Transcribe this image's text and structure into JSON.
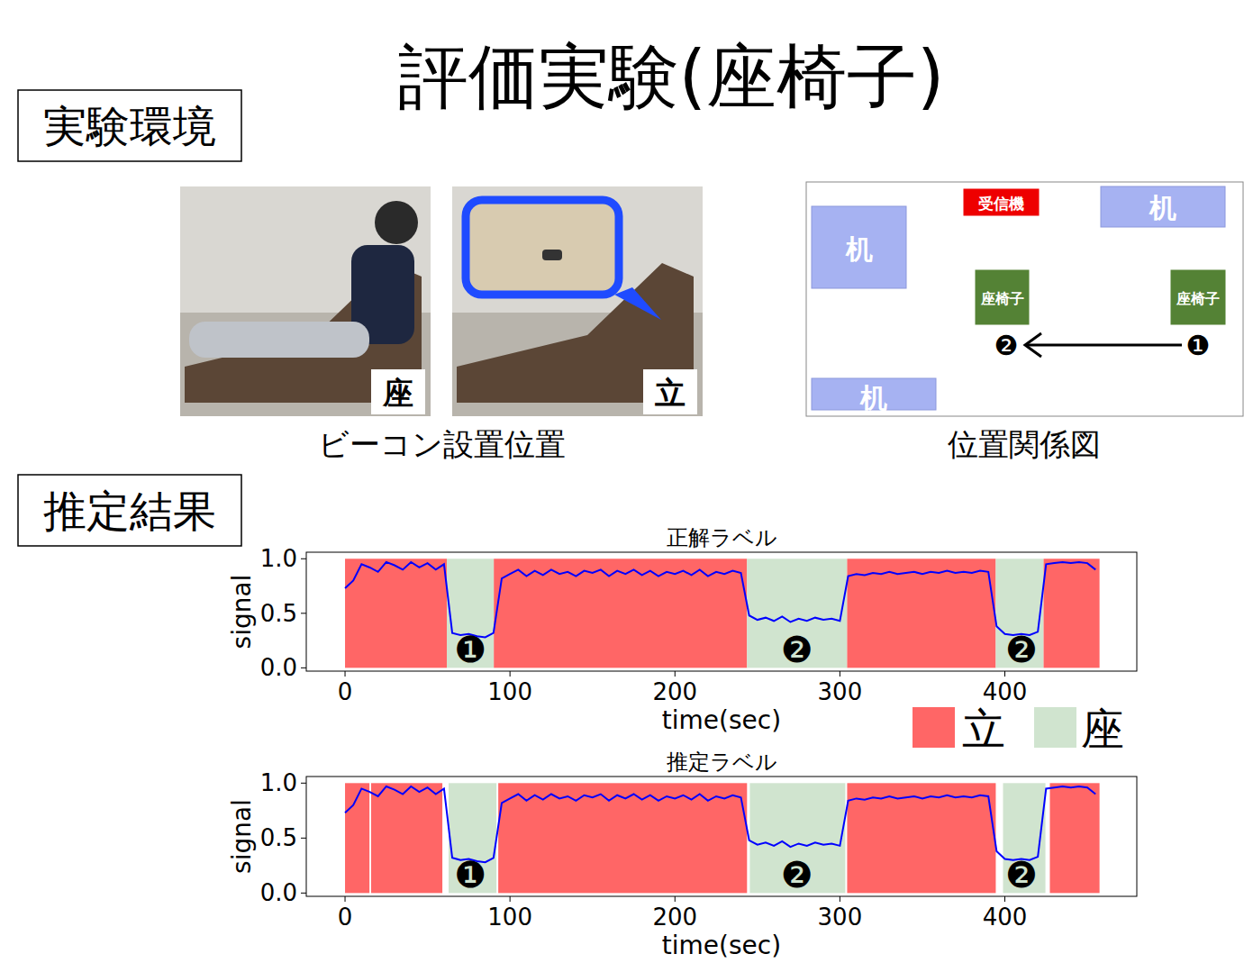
{
  "title": "評価実験(座椅子)",
  "sections": [
    {
      "label": "実験環境"
    },
    {
      "label": "推定結果"
    }
  ],
  "photos": {
    "caption": "ビーコン設置位置",
    "items": [
      {
        "label": "座"
      },
      {
        "label": "立"
      }
    ]
  },
  "layout_diagram": {
    "caption": "位置関係図",
    "nodes": [
      {
        "label": "机"
      },
      {
        "label": "受信機"
      },
      {
        "label": "机"
      },
      {
        "label": "座椅子"
      },
      {
        "label": "座椅子"
      },
      {
        "label": "机"
      }
    ],
    "arrow": {
      "from": "❶",
      "to": "❷"
    }
  },
  "legend": [
    {
      "name": "立",
      "color": "#ff6666"
    },
    {
      "name": "座",
      "color": "#d0e4cf"
    }
  ],
  "chart_data": [
    {
      "type": "line",
      "title": "正解ラベル",
      "x_label": "time(sec)",
      "y_label": "signal",
      "xlim": [
        -23.5,
        480
      ],
      "ylim": [
        -0.03,
        1.06
      ],
      "xticks": [
        0,
        100,
        200,
        300,
        400
      ],
      "yticks": [
        {
          "value": 0,
          "label": "0.0"
        },
        {
          "value": 0.5,
          "label": "0.5"
        },
        {
          "value": 1,
          "label": "1.0"
        }
      ],
      "segment_range": [
        0,
        1
      ],
      "segments": [
        {
          "start": 0,
          "end": 61.7,
          "class": 0
        },
        {
          "start": 61.7,
          "end": 90.2,
          "class": 1
        },
        {
          "start": 90.2,
          "end": 243.7,
          "class": 0
        },
        {
          "start": 243.7,
          "end": 304.4,
          "class": 1
        },
        {
          "start": 304.4,
          "end": 394.5,
          "class": 0
        },
        {
          "start": 394.5,
          "end": 423.5,
          "class": 1
        },
        {
          "start": 423.5,
          "end": 457.4,
          "class": 0
        }
      ],
      "annotations": [
        {
          "x": 76,
          "y": 0.17,
          "text": "❶"
        },
        {
          "x": 274,
          "y": 0.17,
          "text": "❷"
        },
        {
          "x": 410,
          "y": 0.17,
          "text": "❷"
        }
      ],
      "x": [
        0,
        5,
        10,
        15,
        20,
        25,
        30,
        35,
        40,
        45,
        50,
        55,
        60,
        65,
        70,
        75,
        80,
        85,
        90,
        95,
        100,
        105,
        110,
        115,
        120,
        125,
        130,
        135,
        140,
        145,
        150,
        155,
        160,
        165,
        170,
        175,
        180,
        185,
        190,
        195,
        200,
        205,
        210,
        215,
        220,
        225,
        230,
        235,
        240,
        245,
        250,
        255,
        260,
        265,
        270,
        275,
        280,
        285,
        290,
        295,
        300,
        305,
        310,
        315,
        320,
        325,
        330,
        335,
        340,
        345,
        350,
        355,
        360,
        365,
        370,
        375,
        380,
        385,
        390,
        395,
        400,
        405,
        410,
        415,
        420,
        425,
        430,
        435,
        440,
        445,
        450,
        455
      ],
      "series": [
        {
          "color": "#0000ff",
          "values": [
            0.73,
            0.8,
            0.95,
            0.92,
            0.88,
            0.97,
            0.94,
            0.9,
            0.97,
            0.92,
            0.96,
            0.9,
            0.95,
            0.32,
            0.3,
            0.31,
            0.29,
            0.28,
            0.32,
            0.82,
            0.86,
            0.9,
            0.84,
            0.89,
            0.85,
            0.9,
            0.86,
            0.88,
            0.84,
            0.89,
            0.87,
            0.9,
            0.84,
            0.89,
            0.86,
            0.9,
            0.85,
            0.89,
            0.84,
            0.88,
            0.86,
            0.89,
            0.85,
            0.9,
            0.84,
            0.88,
            0.86,
            0.89,
            0.87,
            0.48,
            0.44,
            0.46,
            0.43,
            0.47,
            0.42,
            0.45,
            0.43,
            0.46,
            0.44,
            0.45,
            0.43,
            0.84,
            0.86,
            0.85,
            0.87,
            0.86,
            0.88,
            0.86,
            0.87,
            0.88,
            0.86,
            0.88,
            0.87,
            0.89,
            0.87,
            0.88,
            0.87,
            0.89,
            0.88,
            0.38,
            0.31,
            0.3,
            0.31,
            0.3,
            0.33,
            0.95,
            0.96,
            0.97,
            0.96,
            0.97,
            0.96,
            0.9
          ]
        }
      ]
    },
    {
      "type": "line",
      "title": "推定ラベル",
      "x_label": "time(sec)",
      "y_label": "signal",
      "xlim": [
        -23.5,
        480
      ],
      "ylim": [
        -0.03,
        1.06
      ],
      "xticks": [
        0,
        100,
        200,
        300,
        400
      ],
      "yticks": [
        {
          "value": 0,
          "label": "0.0"
        },
        {
          "value": 0.5,
          "label": "0.5"
        },
        {
          "value": 1,
          "label": "1.0"
        }
      ],
      "segment_range": [
        0,
        1
      ],
      "segments": [
        {
          "start": 0,
          "end": 14.8,
          "class": 0
        },
        {
          "start": 15.8,
          "end": 59,
          "class": 0
        },
        {
          "start": 62.8,
          "end": 91.8,
          "class": 1
        },
        {
          "start": 92.9,
          "end": 243.7,
          "class": 0
        },
        {
          "start": 245.4,
          "end": 303.3,
          "class": 1
        },
        {
          "start": 304.4,
          "end": 394.5,
          "class": 0
        },
        {
          "start": 398.9,
          "end": 424.6,
          "class": 1
        },
        {
          "start": 427.3,
          "end": 457.4,
          "class": 0
        }
      ],
      "annotations": [
        {
          "x": 76,
          "y": 0.17,
          "text": "❶"
        },
        {
          "x": 274,
          "y": 0.17,
          "text": "❷"
        },
        {
          "x": 410,
          "y": 0.17,
          "text": "❷"
        }
      ],
      "x": [
        0,
        5,
        10,
        15,
        20,
        25,
        30,
        35,
        40,
        45,
        50,
        55,
        60,
        65,
        70,
        75,
        80,
        85,
        90,
        95,
        100,
        105,
        110,
        115,
        120,
        125,
        130,
        135,
        140,
        145,
        150,
        155,
        160,
        165,
        170,
        175,
        180,
        185,
        190,
        195,
        200,
        205,
        210,
        215,
        220,
        225,
        230,
        235,
        240,
        245,
        250,
        255,
        260,
        265,
        270,
        275,
        280,
        285,
        290,
        295,
        300,
        305,
        310,
        315,
        320,
        325,
        330,
        335,
        340,
        345,
        350,
        355,
        360,
        365,
        370,
        375,
        380,
        385,
        390,
        395,
        400,
        405,
        410,
        415,
        420,
        425,
        430,
        435,
        440,
        445,
        450,
        455
      ],
      "series": [
        {
          "color": "#0000ff",
          "values": [
            0.73,
            0.8,
            0.95,
            0.92,
            0.88,
            0.97,
            0.94,
            0.9,
            0.97,
            0.92,
            0.96,
            0.9,
            0.95,
            0.32,
            0.3,
            0.31,
            0.29,
            0.28,
            0.32,
            0.82,
            0.86,
            0.9,
            0.84,
            0.89,
            0.85,
            0.9,
            0.86,
            0.88,
            0.84,
            0.89,
            0.87,
            0.9,
            0.84,
            0.89,
            0.86,
            0.9,
            0.85,
            0.89,
            0.84,
            0.88,
            0.86,
            0.89,
            0.85,
            0.9,
            0.84,
            0.88,
            0.86,
            0.89,
            0.87,
            0.48,
            0.44,
            0.46,
            0.43,
            0.47,
            0.42,
            0.45,
            0.43,
            0.46,
            0.44,
            0.45,
            0.43,
            0.84,
            0.86,
            0.85,
            0.87,
            0.86,
            0.88,
            0.86,
            0.87,
            0.88,
            0.86,
            0.88,
            0.87,
            0.89,
            0.87,
            0.88,
            0.87,
            0.89,
            0.88,
            0.38,
            0.31,
            0.3,
            0.31,
            0.3,
            0.33,
            0.95,
            0.96,
            0.97,
            0.96,
            0.97,
            0.96,
            0.9
          ]
        }
      ]
    }
  ]
}
